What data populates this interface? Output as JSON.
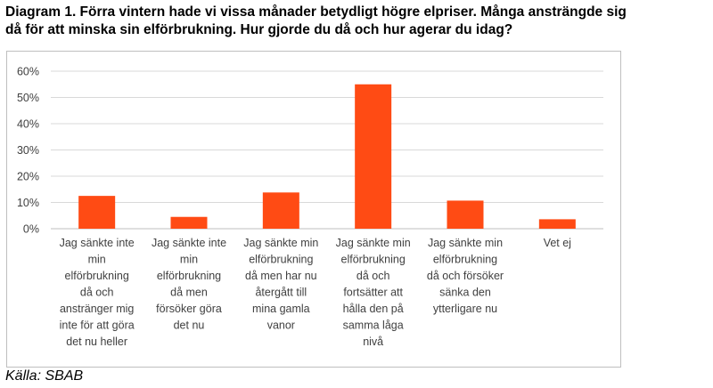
{
  "title_line1": "Diagram 1. Förra vintern hade vi vissa månader betydligt högre elpriser. Många ansträngde sig",
  "title_line2": "då för att minska sin elförbrukning. Hur gjorde du då och hur agerar du idag?",
  "source": "Källa: SBAB",
  "colors": {
    "bar": "#ff4b14",
    "grid": "#d9d9d9",
    "axis": "#bfbfbf",
    "text": "#404040"
  },
  "chart_data": {
    "type": "bar",
    "title": "",
    "xlabel": "",
    "ylabel": "",
    "ylim": [
      0,
      60
    ],
    "yticks": [
      "0%",
      "10%",
      "20%",
      "30%",
      "40%",
      "50%",
      "60%"
    ],
    "grid": true,
    "categories": [
      [
        "Jag sänkte inte",
        "min",
        "elförbrukning",
        "då och",
        "anstränger mig",
        "inte för att göra",
        "det nu heller"
      ],
      [
        "Jag sänkte inte",
        "min",
        "elförbrukning",
        "då men",
        "försöker göra",
        "det nu"
      ],
      [
        "Jag sänkte min",
        "elförbrukning",
        "då men har nu",
        "återgått till",
        "mina gamla",
        "vanor"
      ],
      [
        "Jag sänkte min",
        "elförbrukning",
        "då och",
        "fortsätter att",
        "hålla den på",
        "samma låga",
        "nivå"
      ],
      [
        "Jag sänkte min",
        "elförbrukning",
        "då och försöker",
        "sänka den",
        "ytterligare nu"
      ],
      [
        "Vet ej"
      ]
    ],
    "values": [
      12.5,
      4.5,
      13.8,
      55,
      10.7,
      3.6
    ]
  }
}
